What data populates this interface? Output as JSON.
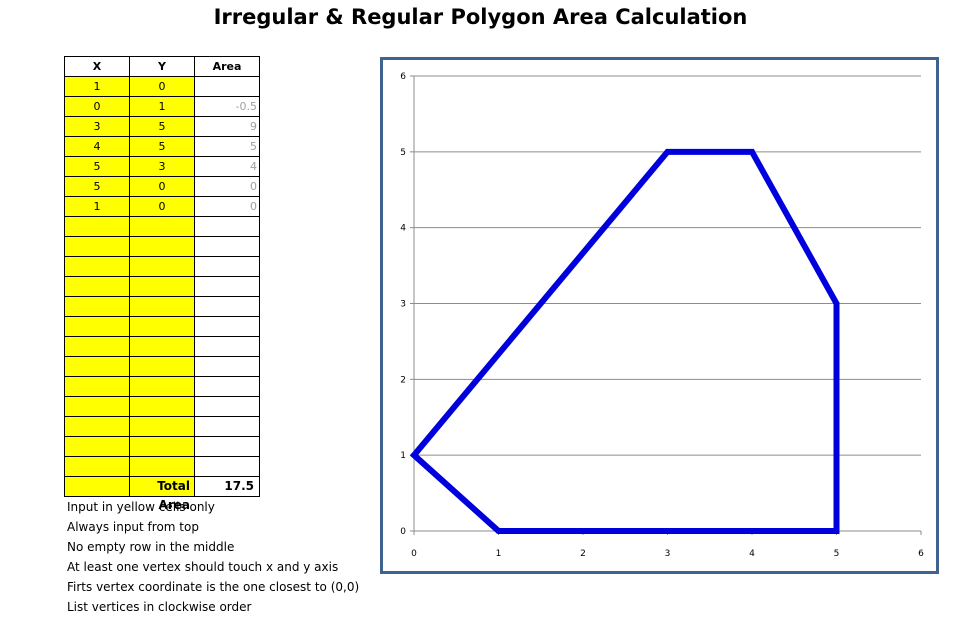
{
  "title": "Irregular & Regular Polygon Area Calculation",
  "table": {
    "headers": [
      "X",
      "Y",
      "Area"
    ],
    "rows": [
      {
        "x": "1",
        "y": "0",
        "area": ""
      },
      {
        "x": "0",
        "y": "1",
        "area": "-0.5"
      },
      {
        "x": "3",
        "y": "5",
        "area": "9"
      },
      {
        "x": "4",
        "y": "5",
        "area": "5"
      },
      {
        "x": "5",
        "y": "3",
        "area": "4"
      },
      {
        "x": "5",
        "y": "0",
        "area": "0"
      },
      {
        "x": "1",
        "y": "0",
        "area": "0"
      },
      {
        "x": "",
        "y": "",
        "area": ""
      },
      {
        "x": "",
        "y": "",
        "area": ""
      },
      {
        "x": "",
        "y": "",
        "area": ""
      },
      {
        "x": "",
        "y": "",
        "area": ""
      },
      {
        "x": "",
        "y": "",
        "area": ""
      },
      {
        "x": "",
        "y": "",
        "area": ""
      },
      {
        "x": "",
        "y": "",
        "area": ""
      },
      {
        "x": "",
        "y": "",
        "area": ""
      },
      {
        "x": "",
        "y": "",
        "area": ""
      },
      {
        "x": "",
        "y": "",
        "area": ""
      },
      {
        "x": "",
        "y": "",
        "area": ""
      },
      {
        "x": "",
        "y": "",
        "area": ""
      },
      {
        "x": "",
        "y": "",
        "area": ""
      },
      {
        "x": "",
        "y": "",
        "area": ""
      }
    ],
    "total_label": "Total Area",
    "total_value": "17.5"
  },
  "notes": [
    "Input in yellow cells only",
    "Always input from top",
    "No empty row in the middle",
    "At least one vertex should touch x and y axis",
    "Firts vertex coordinate is the one closest to (0,0)",
    "List vertices in clockwise order"
  ],
  "colors": {
    "input_cell": "#ffff00",
    "polygon_line": "#0000dd",
    "chart_border": "#3e6391"
  },
  "chart_data": {
    "type": "scatter",
    "series": [
      {
        "x": [
          1,
          0,
          3,
          4,
          5,
          5,
          1
        ],
        "y": [
          0,
          1,
          5,
          5,
          3,
          0,
          0
        ]
      }
    ],
    "xlim": [
      0,
      6
    ],
    "ylim": [
      0,
      6
    ],
    "xticks": [
      0,
      1,
      2,
      3,
      4,
      5,
      6
    ],
    "yticks": [
      0,
      1,
      2,
      3,
      4,
      5,
      6
    ],
    "grid": "horizontal",
    "lines_connected": true
  }
}
